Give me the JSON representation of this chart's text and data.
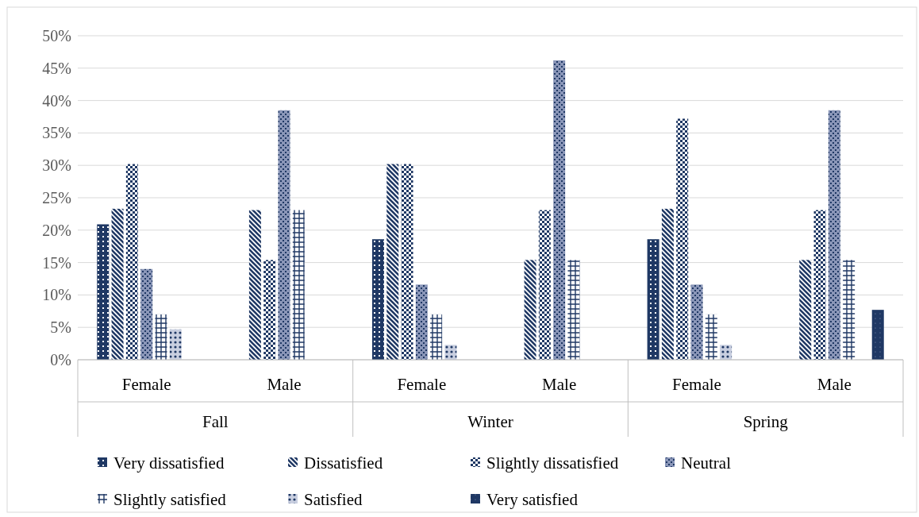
{
  "chart_data": {
    "type": "bar",
    "categories": [
      "Female",
      "Male",
      "Female",
      "Male",
      "Female",
      "Male"
    ],
    "annotations": [
      "Fall",
      "Winter",
      "Spring"
    ],
    "series": [
      {
        "name": "Very dissatisfied",
        "color": "#1f3864",
        "values": [
          20.9,
          0,
          18.6,
          0,
          18.6,
          0
        ]
      },
      {
        "name": "Dissatisfied",
        "color": "#1f3864",
        "values": [
          23.3,
          23.1,
          30.2,
          15.4,
          23.3,
          15.4
        ]
      },
      {
        "name": "Slightly dissatisfied",
        "color": "#1f3864",
        "values": [
          30.2,
          15.4,
          30.2,
          23.1,
          37.2,
          23.1
        ]
      },
      {
        "name": "Neutral",
        "color": "#1f3864",
        "values": [
          14.0,
          38.5,
          11.6,
          46.2,
          11.6,
          38.5
        ]
      },
      {
        "name": "Slightly satisfied",
        "color": "#1f3864",
        "values": [
          7.0,
          23.1,
          7.0,
          15.4,
          7.0,
          15.4
        ]
      },
      {
        "name": "Satisfied",
        "color": "#1f3864",
        "values": [
          4.7,
          0,
          2.3,
          0,
          2.3,
          0
        ]
      },
      {
        "name": "Very satisfied",
        "color": "#1f3864",
        "values": [
          0,
          0,
          0,
          0,
          0,
          7.7
        ]
      }
    ],
    "ylim": [
      0,
      50
    ],
    "yticks": [
      {
        "value": 0,
        "label": "0%"
      },
      {
        "value": 5,
        "label": "5%"
      },
      {
        "value": 10,
        "label": "10%"
      },
      {
        "value": 15,
        "label": "15%"
      },
      {
        "value": 20,
        "label": "20%"
      },
      {
        "value": 25,
        "label": "25%"
      },
      {
        "value": 30,
        "label": "30%"
      },
      {
        "value": 35,
        "label": "35%"
      },
      {
        "value": 40,
        "label": "40%"
      },
      {
        "value": 45,
        "label": "45%"
      },
      {
        "value": 50,
        "label": "50%"
      }
    ],
    "grid": "y",
    "legend": "bottom"
  }
}
